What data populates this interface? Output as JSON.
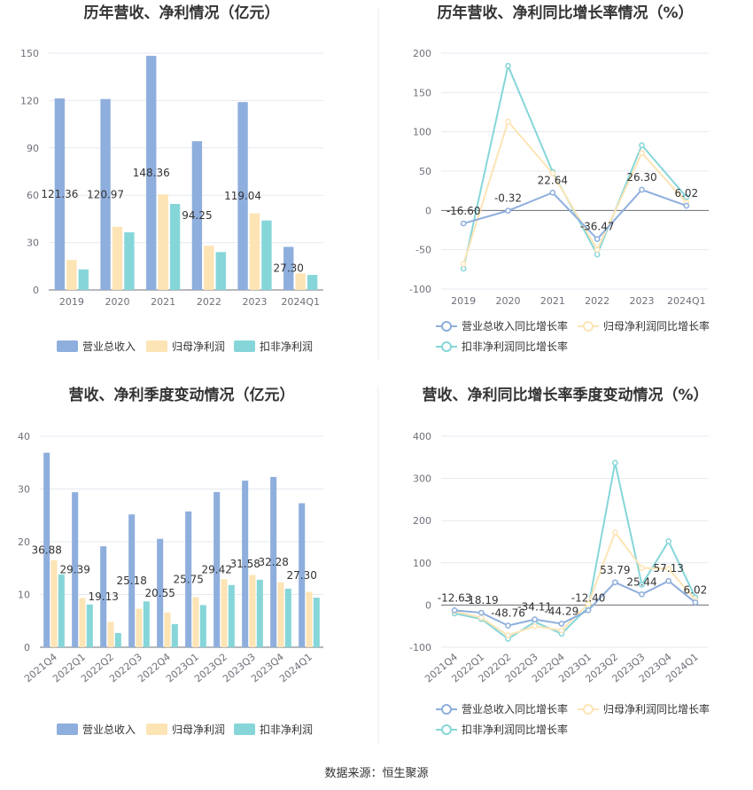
{
  "source": "数据来源：恒生聚源",
  "chart_data": [
    {
      "type": "bar",
      "title": "历年营收、净利情况（亿元）",
      "categories": [
        "2019",
        "2020",
        "2021",
        "2022",
        "2023",
        "2024Q1"
      ],
      "ylim": [
        0,
        150
      ],
      "yticks": [
        0,
        30,
        60,
        90,
        120,
        150
      ],
      "legend_position": "bottom",
      "series": [
        {
          "name": "营业总收入",
          "color": "#8eaedd",
          "values": [
            121.36,
            120.97,
            148.36,
            94.25,
            119.04,
            27.3
          ]
        },
        {
          "name": "归母净利润",
          "color": "#fde4b5",
          "values": [
            19.0,
            40.0,
            60.5,
            28.0,
            48.5,
            10.5
          ]
        },
        {
          "name": "扣非净利润",
          "color": "#86d6d9",
          "values": [
            13.0,
            36.5,
            54.5,
            24.0,
            44.0,
            9.5
          ]
        }
      ],
      "data_labels": [
        "121.36",
        "120.97",
        "148.36",
        "94.25",
        "119.04",
        "27.30"
      ]
    },
    {
      "type": "line",
      "title": "历年营收、净利同比增长率情况（%）",
      "categories": [
        "2019",
        "2020",
        "2021",
        "2022",
        "2023",
        "2024Q1"
      ],
      "ylim": [
        -100,
        200
      ],
      "yticks": [
        -100,
        -50,
        0,
        50,
        100,
        150,
        200
      ],
      "legend_position": "bottom",
      "series": [
        {
          "name": "营业总收入同比增长率",
          "color": "#8eaedd",
          "values": [
            -16.6,
            -0.32,
            22.64,
            -36.47,
            26.3,
            6.02
          ]
        },
        {
          "name": "归母净利润同比增长率",
          "color": "#fde4b5",
          "values": [
            -68.0,
            113.0,
            47.0,
            -50.0,
            73.0,
            10.0
          ]
        },
        {
          "name": "扣非净利润同比增长率",
          "color": "#86d6d9",
          "values": [
            -74.0,
            184.0,
            49.0,
            -56.0,
            83.0,
            17.0
          ]
        }
      ],
      "data_labels": [
        "-16.60",
        "-0.32",
        "22.64",
        "-36.47",
        "26.30",
        "6.02"
      ]
    },
    {
      "type": "bar",
      "title": "营收、净利季度变动情况（亿元）",
      "categories": [
        "2021Q4",
        "2022Q1",
        "2022Q2",
        "2022Q3",
        "2022Q4",
        "2023Q1",
        "2023Q2",
        "2023Q3",
        "2023Q4",
        "2024Q1"
      ],
      "ylim": [
        0,
        40
      ],
      "yticks": [
        0,
        10,
        20,
        30,
        40
      ],
      "legend_position": "bottom",
      "series": [
        {
          "name": "营业总收入",
          "color": "#8eaedd",
          "values": [
            36.88,
            29.39,
            19.13,
            25.18,
            20.55,
            25.75,
            29.42,
            31.58,
            32.28,
            27.3
          ]
        },
        {
          "name": "归母净利润",
          "color": "#fde4b5",
          "values": [
            16.5,
            9.3,
            4.8,
            7.3,
            6.6,
            9.5,
            12.9,
            13.7,
            12.3,
            10.5
          ]
        },
        {
          "name": "扣非净利润",
          "color": "#86d6d9",
          "values": [
            13.8,
            8.1,
            2.7,
            8.7,
            4.4,
            8.0,
            11.8,
            12.8,
            11.1,
            9.4
          ]
        }
      ],
      "data_labels": [
        "36.88",
        "29.39",
        "19.13",
        "25.18",
        "20.55",
        "25.75",
        "29.42",
        "31.58",
        "32.28",
        "27.30"
      ]
    },
    {
      "type": "line",
      "title": "营收、净利同比增长率季度变动情况（%）",
      "categories": [
        "2021Q4",
        "2022Q1",
        "2022Q2",
        "2022Q3",
        "2022Q4",
        "2023Q1",
        "2023Q2",
        "2023Q3",
        "2023Q4",
        "2024Q1"
      ],
      "ylim": [
        -100,
        400
      ],
      "yticks": [
        -100,
        0,
        100,
        200,
        300,
        400
      ],
      "legend_position": "bottom",
      "series": [
        {
          "name": "营业总收入同比增长率",
          "color": "#8eaedd",
          "values": [
            -12.63,
            -18.19,
            -48.76,
            -34.11,
            -44.29,
            -12.4,
            53.79,
            25.44,
            57.13,
            6.02
          ]
        },
        {
          "name": "归母净利润同比增长率",
          "color": "#fde4b5",
          "values": [
            -15.0,
            -30.0,
            -72.0,
            -50.0,
            -60.0,
            3.0,
            172.0,
            88.0,
            86.0,
            12.0
          ]
        },
        {
          "name": "扣非净利润同比增长率",
          "color": "#86d6d9",
          "values": [
            -20.0,
            -33.0,
            -80.0,
            -40.0,
            -68.0,
            -5.0,
            337.0,
            48.0,
            151.0,
            18.0
          ]
        }
      ],
      "data_labels": [
        "-12.63",
        "-18.19",
        "-48.76",
        "-34.11",
        "-44.29",
        "-12.40",
        "53.79",
        "25.44",
        "57.13",
        "6.02"
      ]
    }
  ]
}
